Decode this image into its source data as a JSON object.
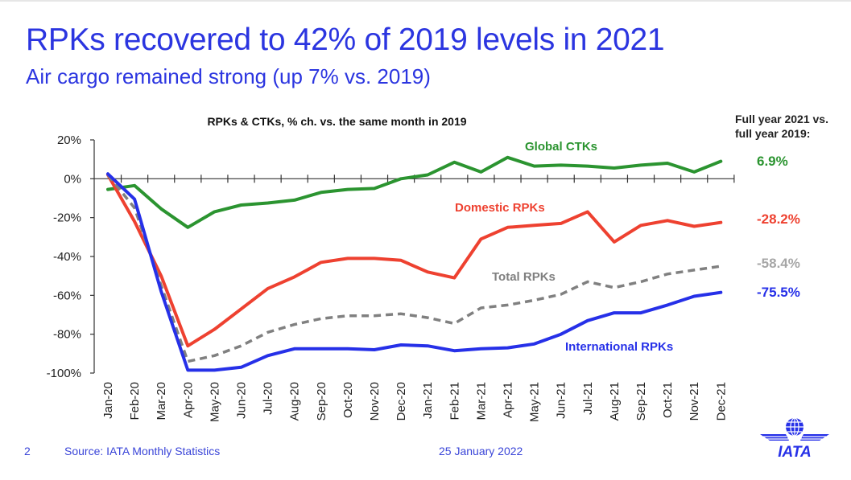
{
  "slide": {
    "title": "RPKs recovered to 42% of 2019 levels in 2021",
    "subtitle": "Air cargo remained strong (up 7% vs. 2019)",
    "page_number": "2",
    "source": "Source: IATA Monthly Statistics",
    "date": "25 January 2022",
    "logo_text": "IATA",
    "logo_icon": "globe-wings-icon"
  },
  "full_year": {
    "header_line1": "Full year 2021 vs.",
    "header_line2": "full year 2019:",
    "values": [
      {
        "series": "Global CTKs",
        "label": "6.9%",
        "color": "#2b9430"
      },
      {
        "series": "Domestic RPKs",
        "label": "-28.2%",
        "color": "#ee4130"
      },
      {
        "series": "Total RPKs",
        "label": "-58.4%",
        "color": "#a6a6a6"
      },
      {
        "series": "International RPKs",
        "label": "-75.5%",
        "color": "#2630e8"
      }
    ]
  },
  "chart_data": {
    "type": "line",
    "title": "RPKs & CTKs, % ch. vs. the same month in 2019",
    "xlabel": "",
    "ylabel": "",
    "ylim": [
      -100,
      20
    ],
    "yticks": [
      20,
      0,
      -20,
      -40,
      -60,
      -80,
      -100
    ],
    "ytick_labels": [
      "20%",
      "0%",
      "-20%",
      "-40%",
      "-60%",
      "-80%",
      "-100%"
    ],
    "grid": false,
    "categories": [
      "Jan-20",
      "Feb-20",
      "Mar-20",
      "Apr-20",
      "May-20",
      "Jun-20",
      "Jul-20",
      "Aug-20",
      "Sep-20",
      "Oct-20",
      "Nov-20",
      "Dec-20",
      "Jan-21",
      "Feb-21",
      "Mar-21",
      "Apr-21",
      "May-21",
      "Jun-21",
      "Jul-21",
      "Aug-21",
      "Sep-21",
      "Oct-21",
      "Nov-21",
      "Dec-21"
    ],
    "series": [
      {
        "name": "Global CTKs",
        "color": "#2b9430",
        "dashed": false,
        "values": [
          -5.5,
          -3.5,
          -15.5,
          -25,
          -17,
          -13.5,
          -12.5,
          -11,
          -7,
          -5.5,
          -5,
          0,
          2,
          8.5,
          3.5,
          11,
          6.5,
          7,
          6.5,
          5.5,
          7,
          8,
          3.5,
          9
        ]
      },
      {
        "name": "Domestic RPKs",
        "color": "#ee4130",
        "dashed": false,
        "values": [
          2,
          -22,
          -50,
          -86,
          -77.5,
          -67,
          -56.5,
          -50.5,
          -43,
          -41,
          -41,
          -42,
          -48,
          -51,
          -31,
          -25,
          -24,
          -23,
          -17,
          -32.5,
          -24,
          -21.5,
          -24.5,
          -22.5
        ]
      },
      {
        "name": "Total RPKs",
        "color": "#808080",
        "dashed": true,
        "values": [
          2,
          -15,
          -55,
          -94,
          -91,
          -86,
          -79,
          -75,
          -72,
          -70.5,
          -70.5,
          -69.5,
          -71.5,
          -74.5,
          -66.5,
          -65,
          -62.5,
          -59.5,
          -53,
          -56,
          -53,
          -49,
          -47,
          -45
        ]
      },
      {
        "name": "International RPKs",
        "color": "#2630e8",
        "dashed": false,
        "values": [
          2.5,
          -10.5,
          -58,
          -98.5,
          -98.5,
          -97,
          -91,
          -87.5,
          -87.5,
          -87.5,
          -88,
          -85.5,
          -86,
          -88.5,
          -87.5,
          -87,
          -85,
          -80,
          -73,
          -69,
          -69,
          -65,
          -60.5,
          -58.5
        ]
      }
    ],
    "annotations": [
      {
        "text": "Global CTKs",
        "series": "Global CTKs",
        "near": "Jan-21 to Apr-21, above line"
      },
      {
        "text": "Domestic RPKs",
        "series": "Domestic RPKs",
        "near": "Feb-21 to Jun-21, above line"
      },
      {
        "text": "Total RPKs",
        "series": "Total RPKs",
        "near": "Feb-21 to May-21, above line"
      },
      {
        "text": "International RPKs",
        "series": "International RPKs",
        "near": "Jun-21 to Oct-21, below line"
      }
    ],
    "legend": "inline-labels"
  }
}
